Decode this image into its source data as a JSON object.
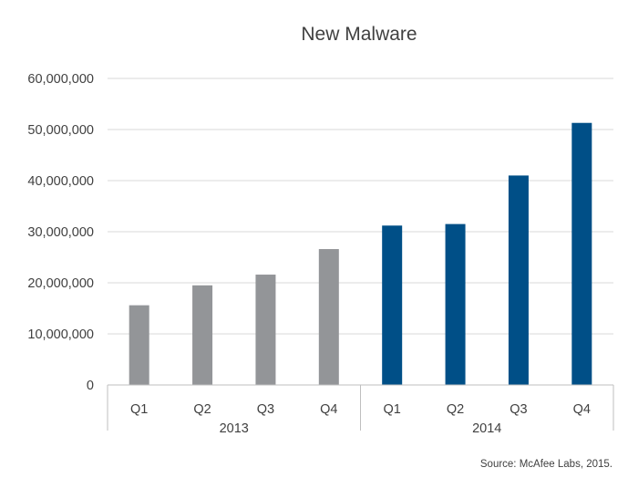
{
  "chart_data": {
    "type": "bar",
    "title": "New Malware",
    "source": "Source: McAfee Labs, 2015.",
    "xlabel": "",
    "ylabel": "",
    "ylim": [
      0,
      60000000
    ],
    "yticks": [
      0,
      10000000,
      20000000,
      30000000,
      40000000,
      50000000,
      60000000
    ],
    "ytick_labels": [
      "0",
      "10,000,000",
      "20,000,000",
      "30,000,000",
      "40,000,000",
      "50,000,000",
      "60,000,000"
    ],
    "grid": true,
    "groups": [
      {
        "label": "2013",
        "color": "#939598",
        "categories": [
          "Q1",
          "Q2",
          "Q3",
          "Q4"
        ],
        "values": [
          15600000,
          19500000,
          21600000,
          26600000
        ]
      },
      {
        "label": "2014",
        "color": "#004f87",
        "categories": [
          "Q1",
          "Q2",
          "Q3",
          "Q4"
        ],
        "values": [
          31200000,
          31500000,
          41000000,
          51300000
        ]
      }
    ],
    "colors": {
      "text": "#404040",
      "grid": "#d9d9d9",
      "axis": "#bfbfbf"
    }
  }
}
